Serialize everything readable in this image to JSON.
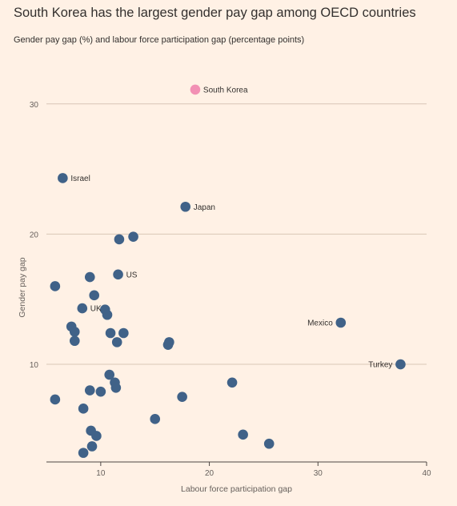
{
  "title": "South Korea has the largest gender pay gap among OECD countries",
  "subtitle": "Gender pay gap (%) and labour force participation gap (percentage points)",
  "colors": {
    "background": "#fff1e5",
    "point": "#406288",
    "highlight": "#f290b4",
    "grid": "#d9c6b6"
  },
  "chart_data": {
    "type": "scatter",
    "xlabel": "Labour force participation gap",
    "ylabel": "Gender pay gap",
    "xlim": [
      5,
      40
    ],
    "ylim": [
      2.5,
      33
    ],
    "xticks": [
      10,
      20,
      30,
      40
    ],
    "yticks": [
      10,
      20,
      30
    ],
    "grid": true,
    "points": [
      {
        "x": 18.7,
        "y": 31.1,
        "label": "South Korea",
        "highlight": true,
        "label_side": "right"
      },
      {
        "x": 6.5,
        "y": 24.3,
        "label": "Israel",
        "label_side": "right"
      },
      {
        "x": 17.8,
        "y": 22.1,
        "label": "Japan",
        "label_side": "right"
      },
      {
        "x": 13.0,
        "y": 19.8
      },
      {
        "x": 11.7,
        "y": 19.6
      },
      {
        "x": 11.6,
        "y": 16.9,
        "label": "US",
        "label_side": "right"
      },
      {
        "x": 9.0,
        "y": 16.7
      },
      {
        "x": 5.8,
        "y": 16.0
      },
      {
        "x": 9.4,
        "y": 15.3
      },
      {
        "x": 8.3,
        "y": 14.3,
        "label": "UK",
        "label_side": "right"
      },
      {
        "x": 10.4,
        "y": 14.2
      },
      {
        "x": 10.6,
        "y": 13.8
      },
      {
        "x": 32.1,
        "y": 13.2,
        "label": "Mexico",
        "label_side": "left"
      },
      {
        "x": 7.3,
        "y": 12.9
      },
      {
        "x": 7.6,
        "y": 12.5
      },
      {
        "x": 10.9,
        "y": 12.4
      },
      {
        "x": 12.1,
        "y": 12.4
      },
      {
        "x": 7.6,
        "y": 11.8
      },
      {
        "x": 11.5,
        "y": 11.7
      },
      {
        "x": 16.3,
        "y": 11.7
      },
      {
        "x": 16.2,
        "y": 11.5
      },
      {
        "x": 37.6,
        "y": 10.0,
        "label": "Turkey",
        "label_side": "left"
      },
      {
        "x": 10.8,
        "y": 9.2
      },
      {
        "x": 22.1,
        "y": 8.6
      },
      {
        "x": 11.3,
        "y": 8.6
      },
      {
        "x": 11.4,
        "y": 8.2
      },
      {
        "x": 9.0,
        "y": 8.0
      },
      {
        "x": 10.0,
        "y": 7.9
      },
      {
        "x": 17.5,
        "y": 7.5
      },
      {
        "x": 5.8,
        "y": 7.3
      },
      {
        "x": 8.4,
        "y": 6.6
      },
      {
        "x": 15.0,
        "y": 5.8
      },
      {
        "x": 9.1,
        "y": 4.9
      },
      {
        "x": 9.6,
        "y": 4.5
      },
      {
        "x": 23.1,
        "y": 4.6
      },
      {
        "x": 25.5,
        "y": 3.9
      },
      {
        "x": 9.2,
        "y": 3.7
      },
      {
        "x": 8.4,
        "y": 3.2
      }
    ]
  }
}
